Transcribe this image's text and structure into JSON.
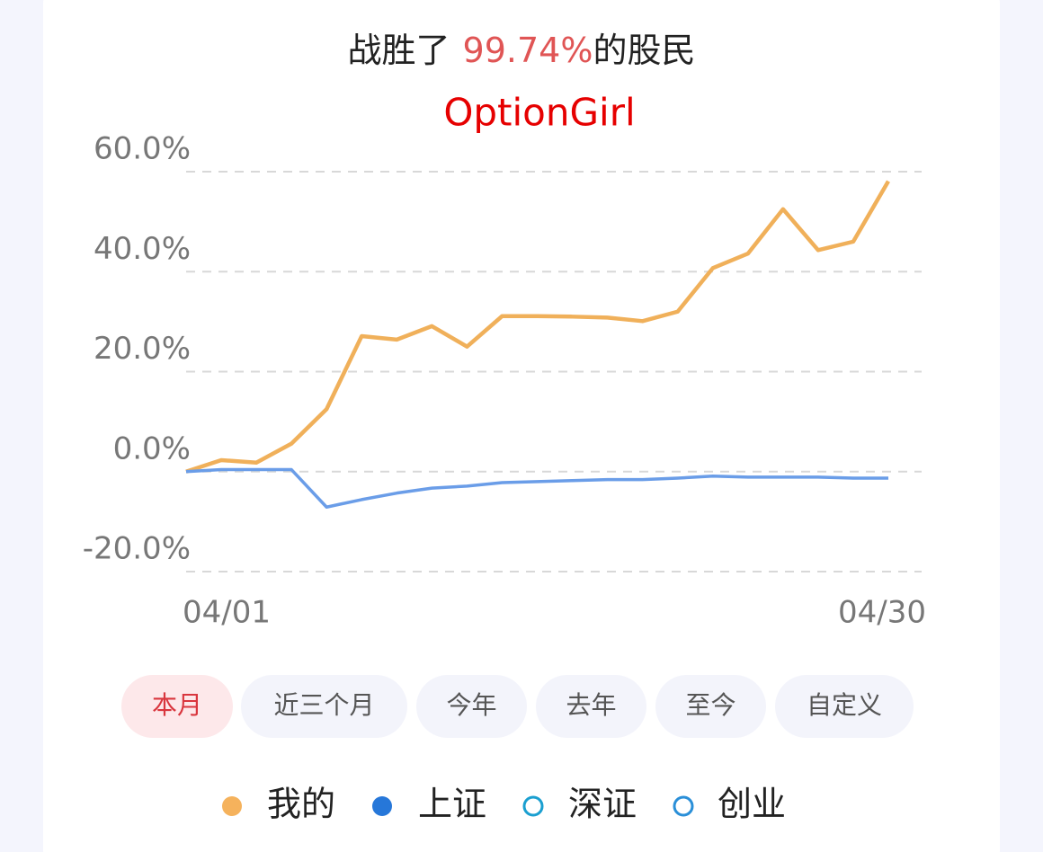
{
  "chart_data": {
    "type": "line",
    "title": [
      "战胜了",
      "99.74%",
      "的股民"
    ],
    "subtitle": "OptionGirl",
    "categories": [
      "04/01",
      null,
      null,
      null,
      null,
      null,
      null,
      null,
      null,
      null,
      null,
      null,
      null,
      null,
      null,
      null,
      null,
      null,
      null,
      null,
      "04/30"
    ],
    "series": [
      {
        "name": "我的",
        "color": "#f0b05a",
        "values": [
          0,
          2.3,
          1.8,
          5.6,
          12.5,
          27.1,
          26.4,
          29.1,
          25.0,
          31.1,
          31.1,
          31.0,
          30.8,
          30.1,
          32.0,
          40.7,
          43.6,
          52.5,
          44.3,
          46.0,
          58.1
        ]
      },
      {
        "name": "上证",
        "color": "#6a9de8",
        "values": [
          0,
          0.4,
          0.4,
          0.4,
          -7.1,
          -5.6,
          -4.3,
          -3.3,
          -2.9,
          -2.2,
          -2.0,
          -1.8,
          -1.6,
          -1.6,
          -1.3,
          -0.9,
          -1.1,
          -1.1,
          -1.1,
          -1.3,
          -1.3
        ]
      }
    ],
    "inactive_legend": [
      {
        "name": "深证",
        "color": "#1a9fd0"
      },
      {
        "name": "创业",
        "color": "#2a8fd8"
      }
    ],
    "legend_marker_colors": [
      "#f5b25c",
      "#2677d9"
    ],
    "ylim": [
      -20,
      60
    ],
    "yticks": [
      {
        "value": -20,
        "label": "-20.0%"
      },
      {
        "value": 0,
        "label": "0.0%"
      },
      {
        "value": 20,
        "label": "20.0%"
      },
      {
        "value": 40,
        "label": "40.0%"
      },
      {
        "value": 60,
        "label": "60.0%"
      }
    ],
    "grid": true
  },
  "tabs": {
    "items": [
      "本月",
      "近三个月",
      "今年",
      "去年",
      "至今",
      "自定义"
    ],
    "selected": 0
  }
}
